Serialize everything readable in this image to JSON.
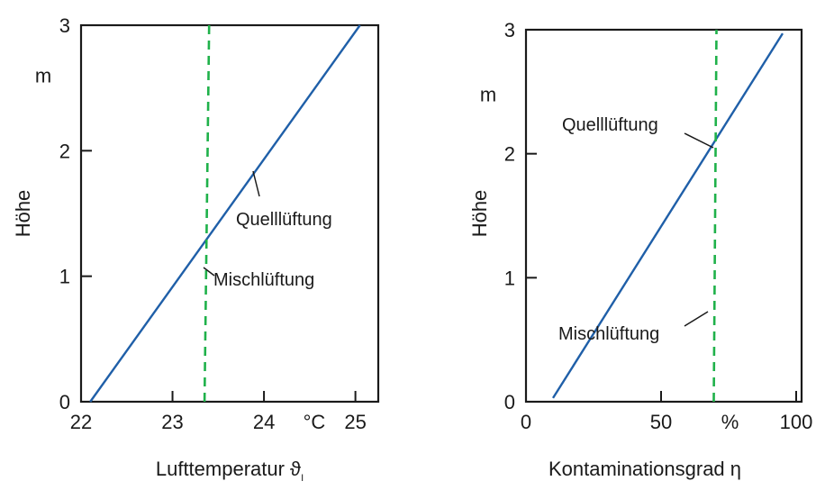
{
  "colors": {
    "frame": "#1a1a1a",
    "blue_line": "#1f5fa8",
    "green_dashed": "#1fb14a"
  },
  "chart_data": [
    {
      "type": "line",
      "xlabel": "Lufttemperatur ϑ",
      "xlabel_subscript": "I",
      "ylabel": "Höhe",
      "y_unit": "m",
      "x_unit": "°C",
      "xlim": [
        22,
        25.25
      ],
      "ylim": [
        0,
        3
      ],
      "x_ticks": [
        "22",
        "23",
        "24",
        "25"
      ],
      "y_ticks": [
        "0",
        "1",
        "2",
        "3"
      ],
      "grid": false,
      "series": [
        {
          "name": "Quelllüftung",
          "style": "solid",
          "color": "#1f5fa8",
          "x": [
            22.1,
            25.05
          ],
          "y": [
            0,
            3
          ]
        },
        {
          "name": "Mischlüftung",
          "style": "dashed",
          "color": "#1fb14a",
          "x": [
            23.35,
            23.4
          ],
          "y": [
            0,
            3
          ]
        }
      ],
      "annotations": [
        "Quelllüftung",
        "Mischlüftung"
      ]
    },
    {
      "type": "line",
      "xlabel": "Kontaminationsgrad η",
      "ylabel": "Höhe",
      "y_unit": "m",
      "x_unit": "%",
      "xlim": [
        0,
        102
      ],
      "ylim": [
        0,
        3
      ],
      "x_ticks": [
        "0",
        "50",
        "100"
      ],
      "y_ticks": [
        "0",
        "1",
        "2",
        "3"
      ],
      "grid": false,
      "series": [
        {
          "name": "Quelllüftung",
          "style": "solid",
          "color": "#1f5fa8",
          "x": [
            10,
            95
          ],
          "y": [
            0.03,
            2.97
          ]
        },
        {
          "name": "Mischlüftung",
          "style": "dashed",
          "color": "#1fb14a",
          "x": [
            69.5,
            70.5
          ],
          "y": [
            0,
            3
          ]
        }
      ],
      "annotations": [
        "Quelllüftung",
        "Mischlüftung"
      ]
    }
  ]
}
